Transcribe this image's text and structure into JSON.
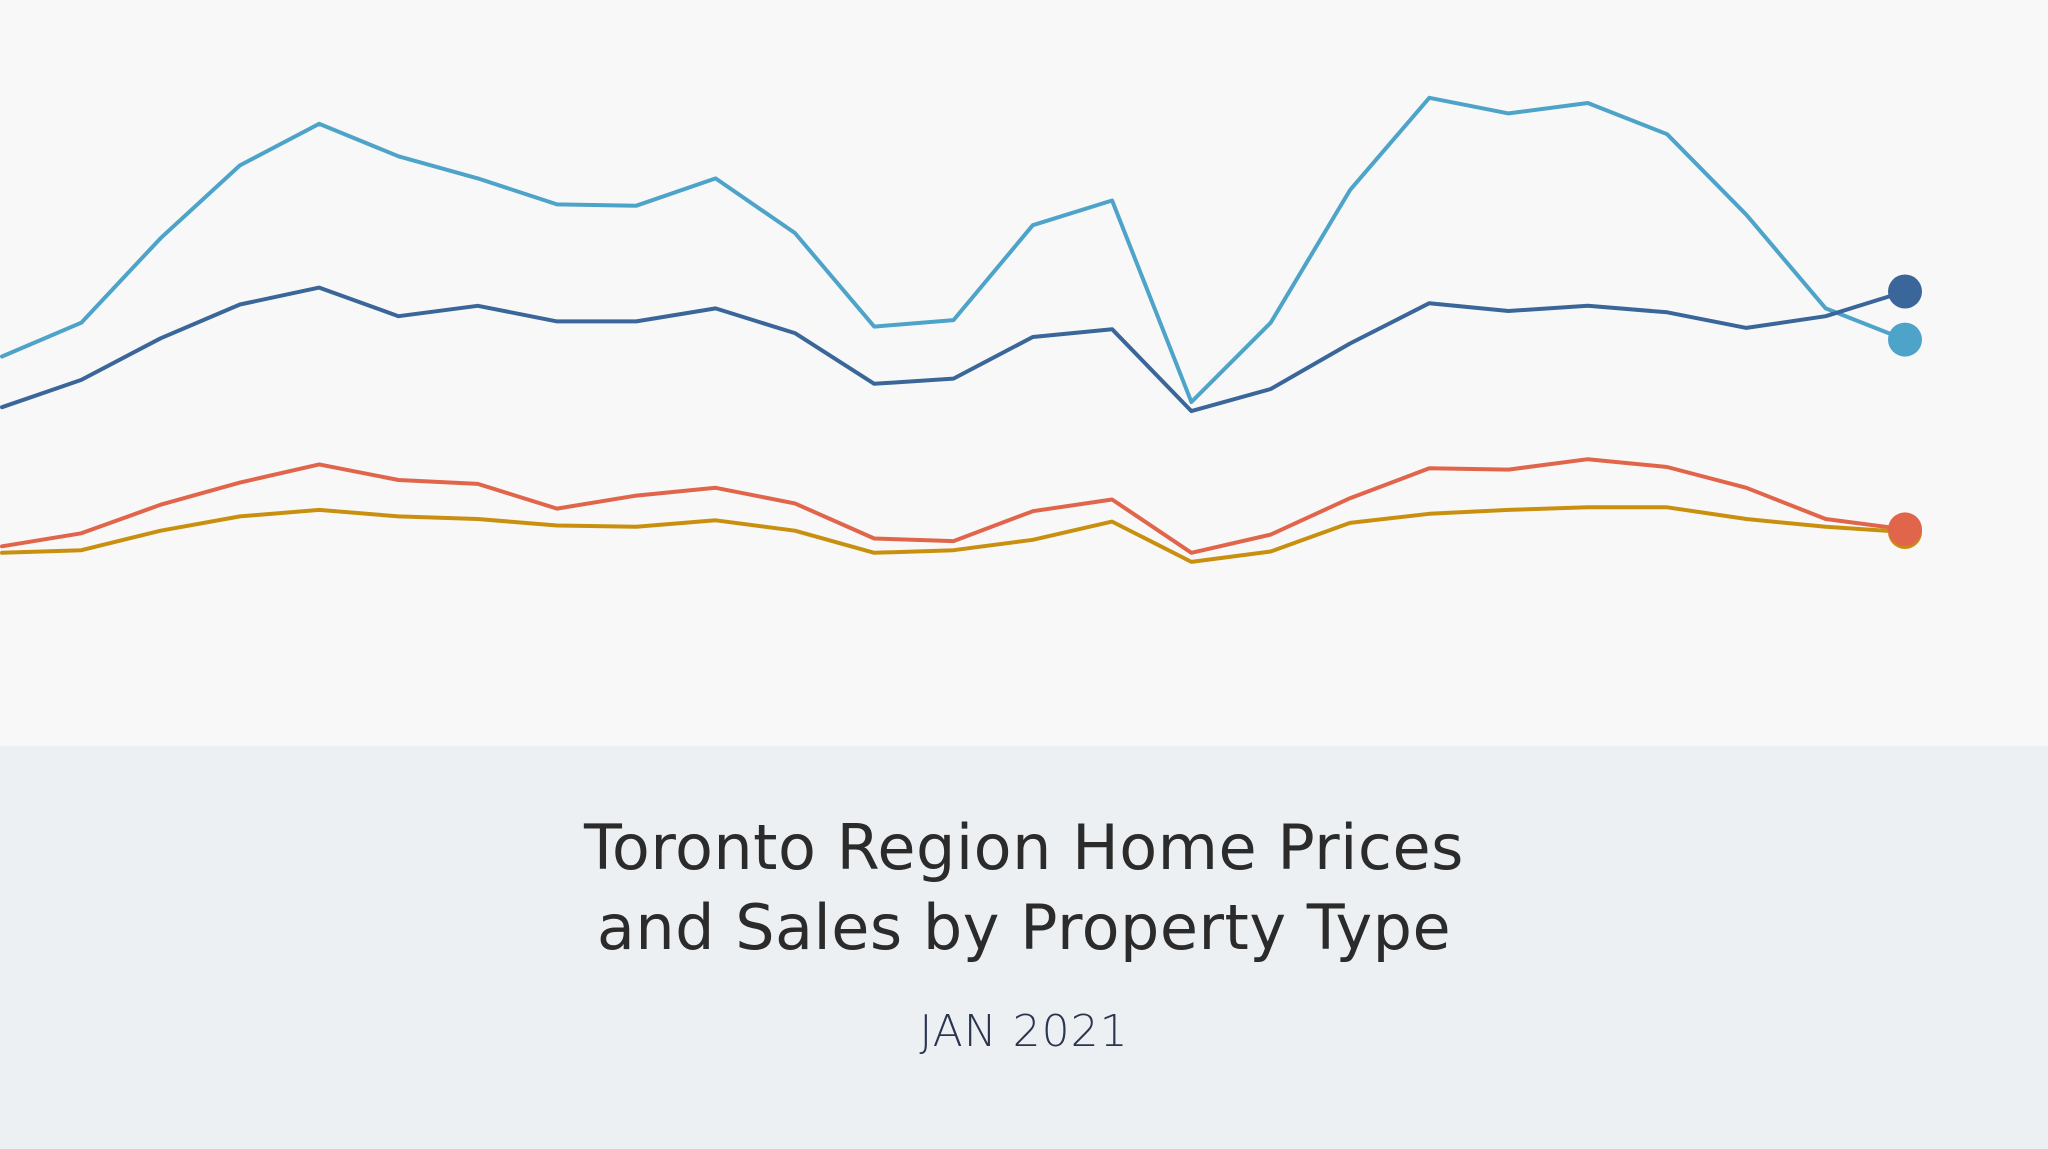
{
  "header": {
    "title_line1": "Toronto Region Home Prices",
    "title_line2": "and Sales by Property Type",
    "subtitle": "JAN 2021"
  },
  "colors": {
    "page_background": "#f8f8f8",
    "footer_background": "#edf0f2",
    "title_text": "#2b2b2b",
    "subtitle_text": "#2b3550"
  },
  "chart_data": {
    "type": "line",
    "title": "",
    "xlabel": "",
    "ylabel": "",
    "axes_visible": false,
    "grid": false,
    "legend": "none",
    "end_markers": true,
    "x": [
      0,
      1,
      2,
      3,
      4,
      5,
      6,
      7,
      8,
      9,
      10,
      11,
      12,
      13,
      14,
      15,
      16,
      17,
      18,
      19,
      20,
      21,
      22,
      23,
      24
    ],
    "ylim": [
      0,
      700
    ],
    "series": [
      {
        "color": "#4ea3c9",
        "values": [
          455,
          481,
          546,
          602,
          634,
          609,
          592,
          572,
          571,
          592,
          550,
          478,
          483,
          556,
          575,
          420,
          481,
          583,
          654,
          642,
          650,
          626,
          564,
          492,
          468
        ]
      },
      {
        "color": "#3a6699",
        "values": [
          416,
          437,
          469,
          495,
          508,
          486,
          494,
          482,
          482,
          492,
          473,
          434,
          438,
          470,
          476,
          413,
          430,
          465,
          496,
          490,
          494,
          489,
          477,
          486,
          505
        ]
      },
      {
        "color": "#e0654a",
        "values": [
          309,
          319,
          341,
          358,
          372,
          360,
          357,
          338,
          348,
          354,
          342,
          315,
          313,
          336,
          345,
          304,
          318,
          346,
          369,
          368,
          376,
          370,
          354,
          330,
          322
        ]
      },
      {
        "color": "#c99010",
        "values": [
          304,
          306,
          321,
          332,
          337,
          332,
          330,
          325,
          324,
          329,
          321,
          304,
          306,
          314,
          328,
          297,
          305,
          327,
          334,
          337,
          339,
          339,
          330,
          324,
          320
        ]
      }
    ]
  }
}
